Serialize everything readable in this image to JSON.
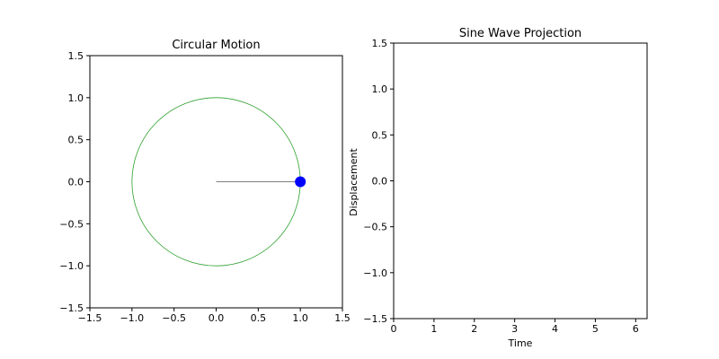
{
  "chart_data": [
    {
      "type": "scatter",
      "title": "Circular Motion",
      "xlabel": "",
      "ylabel": "",
      "xlim": [
        -1.5,
        1.5
      ],
      "ylim": [
        -1.5,
        1.5
      ],
      "xticks": [
        -1.5,
        -1.0,
        -0.5,
        0.0,
        0.5,
        1.0,
        1.5
      ],
      "yticks": [
        -1.5,
        -1.0,
        -0.5,
        0.0,
        0.5,
        1.0,
        1.5
      ],
      "xtick_labels": [
        "−1.5",
        "−1.0",
        "−0.5",
        "0.0",
        "0.5",
        "1.0",
        "1.5"
      ],
      "ytick_labels": [
        "−1.5",
        "−1.0",
        "−0.5",
        "0.0",
        "0.5",
        "1.0",
        "1.5"
      ],
      "circle": {
        "center": [
          0,
          0
        ],
        "radius": 1.0,
        "color": "#2ca02c"
      },
      "radius_line": {
        "from": [
          0,
          0
        ],
        "to": [
          1.0,
          0.0
        ],
        "color": "#555555"
      },
      "point": {
        "x": 1.0,
        "y": 0.0,
        "color": "#0000ff"
      },
      "grid": false
    },
    {
      "type": "line",
      "title": "Sine Wave Projection",
      "xlabel": "Time",
      "ylabel": "Displacement",
      "xlim": [
        0,
        6.283
      ],
      "ylim": [
        -1.5,
        1.5
      ],
      "xticks": [
        0,
        1,
        2,
        3,
        4,
        5,
        6
      ],
      "yticks": [
        -1.5,
        -1.0,
        -0.5,
        0.0,
        0.5,
        1.0,
        1.5
      ],
      "xtick_labels": [
        "0",
        "1",
        "2",
        "3",
        "4",
        "5",
        "6"
      ],
      "ytick_labels": [
        "−1.5",
        "−1.0",
        "−0.5",
        "0.0",
        "0.5",
        "1.0",
        "1.5"
      ],
      "series": [],
      "grid": false
    }
  ]
}
